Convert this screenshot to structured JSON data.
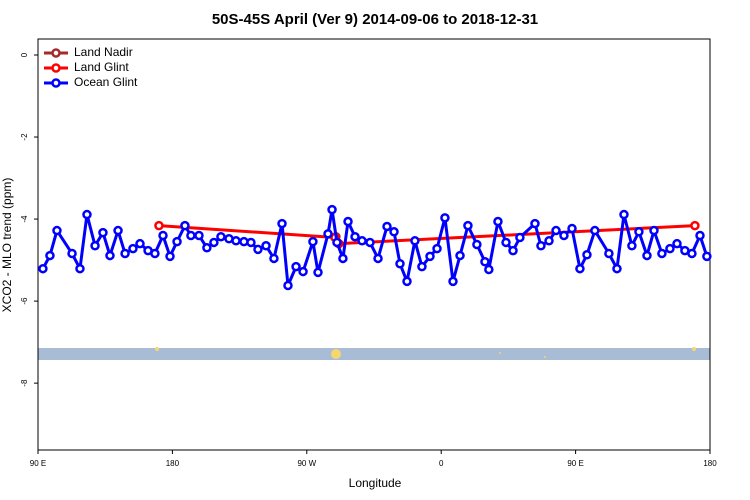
{
  "chart_data": {
    "type": "line",
    "title": "50S-45S April (Ver 9)   2014-09-06 to 2018-12-31",
    "x_label": "Longitude",
    "y_label": "XCO2 - MLO trend (ppm)",
    "xlim": [
      90,
      540
    ],
    "xticks": [
      {
        "value": 90,
        "label": "90 E"
      },
      {
        "value": 180,
        "label": "180"
      },
      {
        "value": 270,
        "label": "90 W"
      },
      {
        "value": 360,
        "label": "0"
      },
      {
        "value": 450,
        "label": "90 E"
      },
      {
        "value": 540,
        "label": "180"
      }
    ],
    "ylim": [
      -9.63,
      0.39
    ],
    "yticks": [
      0,
      -2,
      -4,
      -6,
      -8
    ],
    "legend": "top-left",
    "series": [
      {
        "name": "Land Nadir",
        "color": "#a52a2a",
        "x": [
          289.5
        ],
        "values": [
          -4.43
        ]
      },
      {
        "name": "Land Glint",
        "color": "#ff0000",
        "x": [
          171.0,
          288.9,
          291.5,
          529.9
        ],
        "values": [
          -4.16,
          -4.45,
          -4.6,
          -4.16
        ]
      },
      {
        "name": "Ocean Glint",
        "color": "#0000ff",
        "x": [
          93.3,
          98.0,
          102.7,
          112.8,
          118.1,
          122.8,
          128.2,
          133.5,
          138.2,
          143.6,
          148.3,
          153.6,
          158.3,
          163.7,
          168.3,
          173.7,
          178.4,
          183.1,
          188.4,
          192.4,
          197.8,
          203.1,
          207.8,
          212.5,
          217.9,
          222.6,
          227.9,
          232.6,
          237.3,
          242.7,
          248.0,
          253.4,
          257.4,
          262.8,
          267.5,
          274.1,
          277.5,
          284.2,
          286.9,
          290.2,
          294.2,
          297.6,
          302.3,
          307.0,
          312.3,
          317.7,
          323.7,
          328.4,
          332.4,
          337.1,
          342.4,
          347.1,
          352.5,
          357.2,
          362.5,
          367.9,
          372.6,
          377.9,
          383.9,
          389.3,
          391.9,
          398.0,
          403.4,
          408.1,
          412.7,
          422.8,
          426.8,
          432.2,
          436.9,
          442.2,
          447.6,
          452.9,
          457.6,
          462.9,
          472.3,
          477.7,
          482.4,
          487.7,
          492.4,
          497.8,
          502.5,
          507.8,
          513.2,
          517.9,
          523.2,
          527.9,
          533.3,
          537.9
        ],
        "values": [
          -5.21,
          -4.89,
          -4.28,
          -4.84,
          -5.21,
          -3.89,
          -4.65,
          -4.33,
          -4.89,
          -4.28,
          -4.84,
          -4.72,
          -4.6,
          -4.77,
          -4.84,
          -4.4,
          -4.91,
          -4.55,
          -4.16,
          -4.4,
          -4.4,
          -4.7,
          -4.57,
          -4.43,
          -4.48,
          -4.53,
          -4.55,
          -4.57,
          -4.74,
          -4.65,
          -4.96,
          -4.11,
          -5.62,
          -5.16,
          -5.28,
          -4.55,
          -5.3,
          -4.36,
          -3.77,
          -4.57,
          -4.96,
          -4.06,
          -4.43,
          -4.53,
          -4.57,
          -4.96,
          -4.18,
          -4.31,
          -5.09,
          -5.52,
          -4.53,
          -5.16,
          -4.91,
          -4.72,
          -3.97,
          -5.52,
          -4.89,
          -4.16,
          -4.62,
          -5.04,
          -5.23,
          -4.06,
          -4.57,
          -4.77,
          -4.45,
          -4.11,
          -4.65,
          -4.53,
          -4.28,
          -4.4,
          -4.23,
          -5.21,
          -4.87,
          -4.28,
          -4.84,
          -5.21,
          -3.89,
          -4.65,
          -4.31,
          -4.89,
          -4.28,
          -4.84,
          -4.72,
          -4.6,
          -4.77,
          -4.84,
          -4.4,
          -4.91
        ]
      }
    ]
  }
}
